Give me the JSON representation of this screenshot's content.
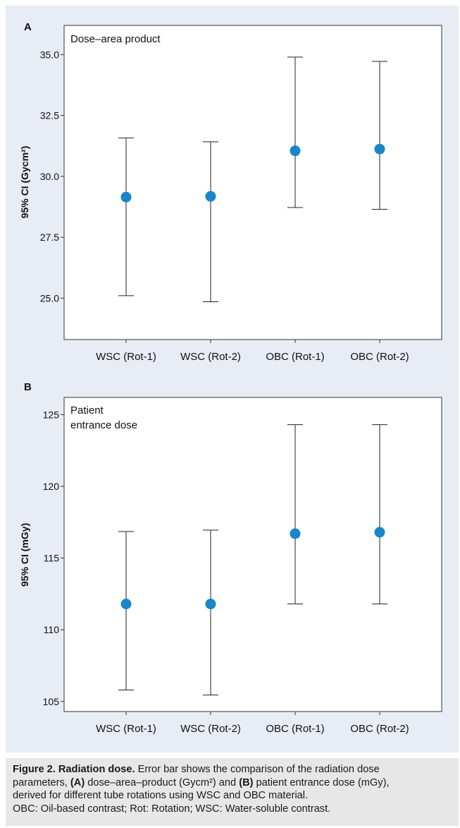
{
  "chart_data": [
    {
      "type": "scatter",
      "panel_label": "A",
      "title": "Dose–area product",
      "ylabel": "95% CI (Gycm²)",
      "ylim": [
        23.3,
        36.2
      ],
      "yticks": [
        25.0,
        27.5,
        30.0,
        32.5,
        35.0
      ],
      "ytick_labels": [
        "25.0",
        "27.5",
        "30.0",
        "32.5",
        "35.0"
      ],
      "categories": [
        "WSC (Rot-1)",
        "WSC (Rot-2)",
        "OBC (Rot-1)",
        "OBC (Rot-2)"
      ],
      "values": [
        29.15,
        29.18,
        31.05,
        31.12
      ],
      "ci_lower": [
        25.1,
        24.85,
        28.72,
        28.65
      ],
      "ci_upper": [
        31.58,
        31.42,
        34.9,
        34.72
      ],
      "marker_color": "#1a85c8"
    },
    {
      "type": "scatter",
      "panel_label": "B",
      "title": "Patient entrance dose",
      "title_lines": [
        "Patient",
        "entrance dose"
      ],
      "ylabel": "95% CI (mGy)",
      "ylim": [
        104.3,
        126.2
      ],
      "yticks": [
        105,
        110,
        115,
        120,
        125
      ],
      "ytick_labels": [
        "105",
        "110",
        "115",
        "120",
        "125"
      ],
      "categories": [
        "WSC (Rot-1)",
        "WSC (Rot-2)",
        "OBC (Rot-1)",
        "OBC (Rot-2)"
      ],
      "values": [
        111.8,
        111.8,
        116.7,
        116.8
      ],
      "ci_lower": [
        105.8,
        105.45,
        111.8,
        111.8
      ],
      "ci_upper": [
        116.85,
        116.95,
        124.3,
        124.3
      ],
      "marker_color": "#1a85c8"
    }
  ],
  "caption": {
    "figure_label": "Figure 2. Radiation dose.",
    "line1_rest": " Error bar shows the comparison of the radiation dose",
    "line2_pre": "parameters, ",
    "line2_boldA": "(A)",
    "line2_mid": " dose–area–product (Gycm²) and ",
    "line2_boldB": "(B)",
    "line2_post": " patient entrance dose (mGy),",
    "line3": "derived for different tube rotations using WSC and OBC material.",
    "line4": "OBC: Oil-based contrast; Rot: Rotation; WSC: Water-soluble contrast."
  },
  "colors": {
    "panel_background": "#e8ecf4",
    "plot_background": "#ffffff",
    "caption_background": "#e7e7e7",
    "marker": "#1a85c8"
  }
}
